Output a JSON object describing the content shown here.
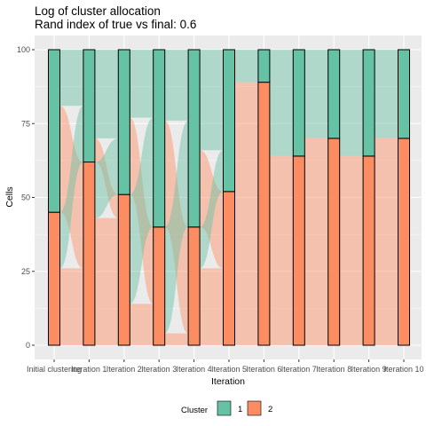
{
  "chart_data": {
    "type": "alluvial",
    "title": "Log of cluster allocation",
    "subtitle": "Rand index of true vs final: 0.6",
    "xlabel": "Iteration",
    "ylabel": "Cells",
    "ylim": [
      0,
      100
    ],
    "yticks": [
      0,
      25,
      50,
      75,
      100
    ],
    "categories": [
      "Initial clustering",
      "Iteration 1",
      "Iteration 2",
      "Iteration 3",
      "Iteration 4",
      "Iteration 5",
      "Iteration 6",
      "Iteration 7",
      "Iteration 8",
      "Iteration 9",
      "Iteration 10"
    ],
    "legend": {
      "title": "Cluster",
      "position": "bottom"
    },
    "series": [
      {
        "name": "1",
        "color": "#66C2A5",
        "values": [
          55,
          38,
          49,
          60,
          60,
          48,
          11,
          36,
          30,
          36,
          30
        ]
      },
      {
        "name": "2",
        "color": "#FC8D62",
        "values": [
          45,
          62,
          51,
          40,
          40,
          52,
          89,
          64,
          70,
          64,
          70
        ]
      }
    ],
    "flows": [
      {
        "from": "1",
        "to": "1",
        "values": [
          19,
          30,
          23,
          24,
          34,
          11,
          11,
          30,
          30,
          30
        ]
      },
      {
        "from": "1",
        "to": "2",
        "values": [
          36,
          8,
          26,
          36,
          26,
          37,
          0,
          6,
          0,
          6
        ]
      },
      {
        "from": "2",
        "to": "1",
        "values": [
          19,
          19,
          37,
          36,
          14,
          0,
          25,
          0,
          6,
          0
        ]
      },
      {
        "from": "2",
        "to": "2",
        "values": [
          26,
          43,
          14,
          4,
          26,
          52,
          64,
          64,
          64,
          64
        ]
      }
    ],
    "grid": true
  }
}
